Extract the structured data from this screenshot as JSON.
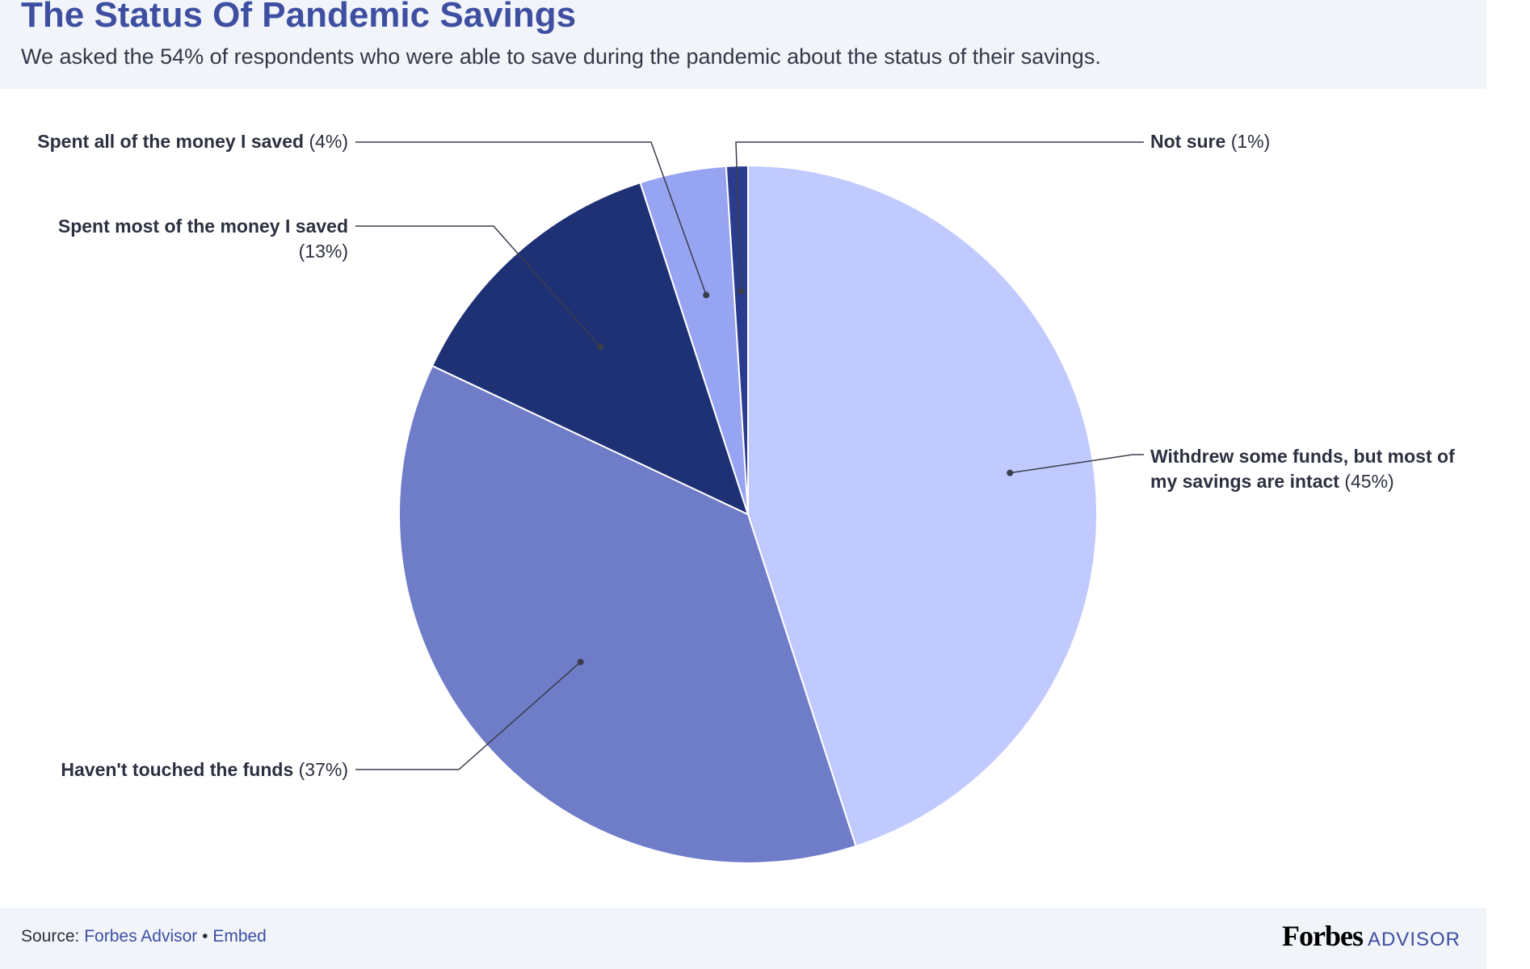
{
  "header": {
    "title": "The Status Of Pandemic Savings",
    "subtitle": "We asked the 54% of respondents who were able to save during the pandemic about the status of their savings."
  },
  "chart_data": {
    "type": "pie",
    "title": "The Status Of Pandemic Savings",
    "slices": [
      {
        "label": "Withdrew some funds, but most of my savings are intact",
        "label_line1": "Withdrew some funds, but most of",
        "label_line2": "my savings are intact",
        "value": 45,
        "value_text": "(45%)",
        "color": "#c0caff"
      },
      {
        "label": "Haven't touched the funds",
        "value": 37,
        "value_text": "(37%)",
        "color": "#6f7cc8"
      },
      {
        "label": "Spent most of the money I saved",
        "value": 13,
        "value_text": "(13%)",
        "color": "#1f3175"
      },
      {
        "label": "Spent all of the money I saved",
        "value": 4,
        "value_text": "(4%)",
        "color": "#97a4f2"
      },
      {
        "label": "Not sure",
        "value": 1,
        "value_text": "(1%)",
        "color": "#2b3c8e"
      }
    ]
  },
  "footer": {
    "source_label": "Source:",
    "source_name": "Forbes Advisor",
    "separator": "•",
    "embed": "Embed",
    "logo_main": "Forbes",
    "logo_sub": "ADVISOR"
  },
  "colors": {
    "title": "#3e4fa2",
    "panel_background": "#f1f4f9",
    "leader_line": "#3a3d4a"
  }
}
